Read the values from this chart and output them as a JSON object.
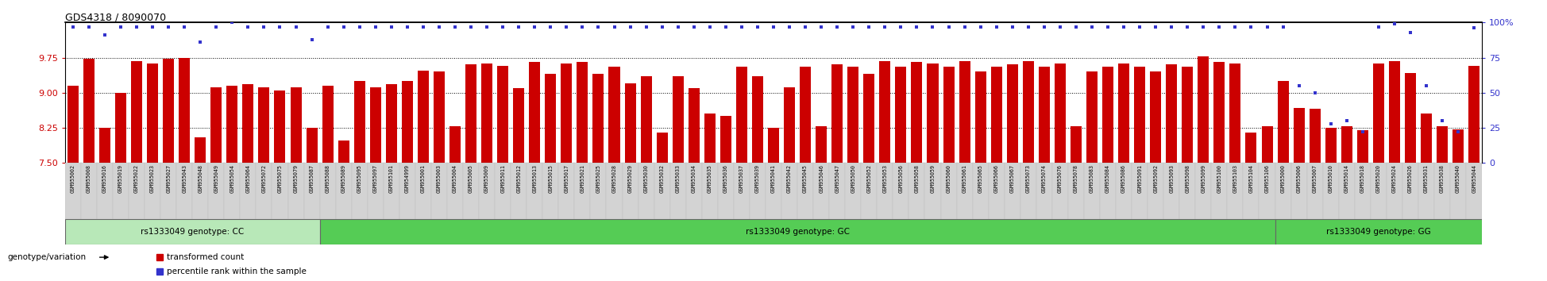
{
  "title": "GDS4318 / 8090070",
  "bar_color": "#cc0000",
  "dot_color": "#3333cc",
  "ylim_left": [
    7.5,
    10.5
  ],
  "ylim_right": [
    0,
    100
  ],
  "yticks_left": [
    7.5,
    8.25,
    9.0,
    9.75
  ],
  "yticks_right": [
    0,
    25,
    50,
    75,
    100
  ],
  "background_color": "#ffffff",
  "genotype_band_color_cc": "#b8e8b8",
  "genotype_band_color_gc": "#55cc55",
  "genotype_band_color_gg": "#55cc55",
  "label_cc": "rs1333049 genotype: CC",
  "label_gc": "rs1333049 genotype: GC",
  "label_gg": "rs1333049 genotype: GG",
  "legend_bar": "transformed count",
  "legend_dot": "percentile rank within the sample",
  "genotype_variation_label": "genotype/variation",
  "cc_samples": [
    "GSM955002",
    "GSM955008",
    "GSM955016",
    "GSM955019",
    "GSM955022",
    "GSM955023",
    "GSM955027",
    "GSM955043",
    "GSM955048",
    "GSM955049",
    "GSM955054",
    "GSM955064",
    "GSM955072",
    "GSM955075",
    "GSM955079",
    "GSM955087"
  ],
  "cc_bars": [
    9.15,
    9.73,
    8.25,
    9.0,
    9.68,
    9.62,
    9.73,
    9.75,
    8.05,
    9.12,
    9.15,
    9.18,
    9.12,
    9.05,
    9.12,
    8.25
  ],
  "cc_pct": [
    97,
    97,
    91,
    97,
    97,
    97,
    97,
    97,
    86,
    97,
    100,
    97,
    97,
    97,
    97,
    88
  ],
  "gc_samples": [
    "GSM955088",
    "GSM955089",
    "GSM955095",
    "GSM955097",
    "GSM955101",
    "GSM954999",
    "GSM955001",
    "GSM955003",
    "GSM955004",
    "GSM955005",
    "GSM955009",
    "GSM955011",
    "GSM955012",
    "GSM955013",
    "GSM955015",
    "GSM955017",
    "GSM955021",
    "GSM955025",
    "GSM955028",
    "GSM955029",
    "GSM955030",
    "GSM955032",
    "GSM955033",
    "GSM955034",
    "GSM955035",
    "GSM955036",
    "GSM955037",
    "GSM955039",
    "GSM955041",
    "GSM955042",
    "GSM955045",
    "GSM955046",
    "GSM955047",
    "GSM955050",
    "GSM955052",
    "GSM955053",
    "GSM955056",
    "GSM955058",
    "GSM955059",
    "GSM955060",
    "GSM955061",
    "GSM955065",
    "GSM955066",
    "GSM955067",
    "GSM955073",
    "GSM955074",
    "GSM955076",
    "GSM955078",
    "GSM955083",
    "GSM955084",
    "GSM955086",
    "GSM955091",
    "GSM955092",
    "GSM955093",
    "GSM955098",
    "GSM955099",
    "GSM955100",
    "GSM955103",
    "GSM955104",
    "GSM955106"
  ],
  "gc_bars": [
    9.15,
    7.98,
    9.25,
    9.12,
    9.18,
    9.25,
    9.48,
    9.45,
    8.28,
    9.6,
    9.62,
    9.58,
    9.1,
    9.65,
    9.4,
    9.62,
    9.65,
    9.4,
    9.55,
    9.2,
    9.35,
    8.15,
    9.35,
    9.1,
    8.55,
    8.5,
    9.55,
    9.35,
    8.25,
    9.12,
    9.55,
    8.28,
    9.6,
    9.55,
    9.4,
    9.68,
    9.55,
    9.65,
    9.62,
    9.55,
    9.68,
    9.45,
    9.55,
    9.6,
    9.68,
    9.55,
    9.62,
    8.28,
    9.45,
    9.55,
    9.62,
    9.55,
    9.45,
    9.6,
    9.55,
    9.78,
    9.65,
    9.62,
    8.15,
    8.28
  ],
  "gc_pct": [
    97,
    97,
    97,
    97,
    97,
    97,
    97,
    97,
    97,
    97,
    97,
    97,
    97,
    97,
    97,
    97,
    97,
    97,
    97,
    97,
    97,
    97,
    97,
    97,
    97,
    97,
    97,
    97,
    97,
    97,
    97,
    97,
    97,
    97,
    97,
    97,
    97,
    97,
    97,
    97,
    97,
    97,
    97,
    97,
    97,
    97,
    97,
    97,
    97,
    97,
    97,
    97,
    97,
    97,
    97,
    97,
    97,
    97,
    97,
    97
  ],
  "gg_samples": [
    "GSM955000",
    "GSM955006",
    "GSM955007",
    "GSM955010",
    "GSM955014",
    "GSM955018",
    "GSM955020",
    "GSM955024",
    "GSM955026",
    "GSM955031",
    "GSM955038",
    "GSM955040",
    "GSM955044"
  ],
  "gg_bars": [
    9.25,
    8.68,
    8.65,
    8.25,
    8.28,
    8.2,
    9.62,
    9.68,
    9.42,
    8.55,
    8.28,
    8.22,
    9.58
  ],
  "gg_pct": [
    97,
    55,
    50,
    28,
    30,
    22,
    97,
    99,
    93,
    55,
    30,
    22,
    96
  ]
}
